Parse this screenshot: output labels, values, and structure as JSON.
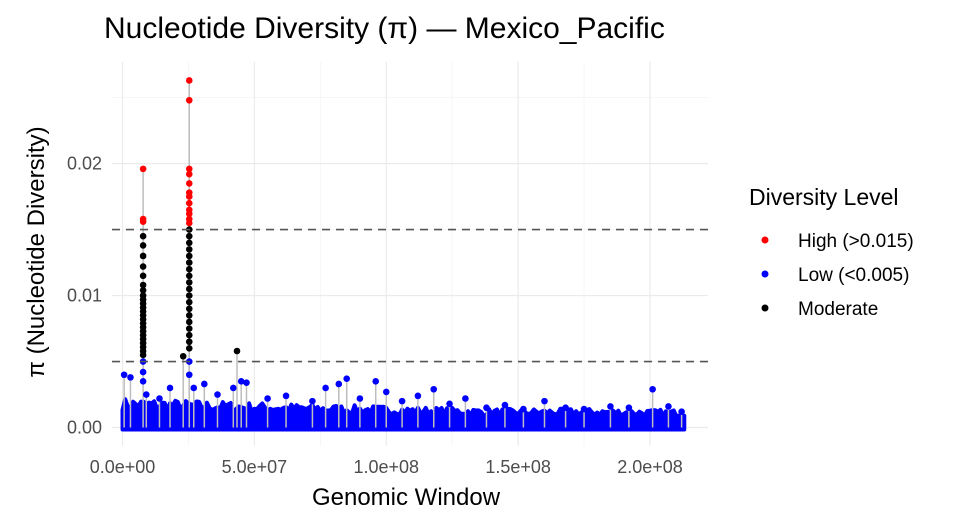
{
  "chart_data": {
    "type": "scatter",
    "title": "Nucleotide Diversity (π) — Mexico_Pacific",
    "xlabel": "Genomic Window",
    "ylabel": "π (Nucleotide Diversity)",
    "xlim": [
      -4000000,
      222000000
    ],
    "ylim": [
      -0.0014,
      0.0277
    ],
    "x_ticks": [
      0,
      50000000,
      100000000,
      150000000,
      200000000
    ],
    "x_tick_labels": [
      "0.0e+00",
      "5.0e+07",
      "1.0e+08",
      "1.5e+08",
      "2.0e+08"
    ],
    "y_ticks": [
      0,
      0.01,
      0.02
    ],
    "y_tick_labels": [
      "0.00",
      "0.01",
      "0.02"
    ],
    "grid": true,
    "reference_lines": [
      0.015,
      0.005
    ],
    "legend": {
      "title": "Diversity Level",
      "position": "right",
      "entries": [
        {
          "label": "High (>0.015)",
          "color": "#ff0000"
        },
        {
          "label": "Low (<0.005)",
          "color": "#0000ff"
        },
        {
          "label": "Moderate",
          "color": "#000000"
        }
      ]
    },
    "series": [
      {
        "name": "High (>0.015)",
        "color": "#ff0000",
        "x": [
          7800000,
          7800000,
          7800000,
          25300000,
          25300000,
          25300000,
          25300000,
          25300000,
          25300000,
          25300000,
          25300000,
          25300000,
          25300000,
          25300000,
          25300000
        ],
        "y": [
          0.0196,
          0.0158,
          0.0156,
          0.0263,
          0.0248,
          0.0196,
          0.0192,
          0.0185,
          0.0178,
          0.0175,
          0.017,
          0.0165,
          0.0162,
          0.0158,
          0.0155
        ]
      },
      {
        "name": "Moderate",
        "color": "#000000",
        "x": [
          7800000,
          7800000,
          7800000,
          7800000,
          7800000,
          7800000,
          7800000,
          7800000,
          7800000,
          7800000,
          7800000,
          7800000,
          7800000,
          7800000,
          7800000,
          7800000,
          7800000,
          7800000,
          7800000,
          7800000,
          7800000,
          7800000,
          7800000,
          25300000,
          25300000,
          25300000,
          25300000,
          25300000,
          25300000,
          25300000,
          25300000,
          25300000,
          25300000,
          25300000,
          25300000,
          25300000,
          25300000,
          25300000,
          25300000,
          25300000,
          25300000,
          25300000,
          23000000,
          43400000
        ],
        "y": [
          0.0145,
          0.0138,
          0.013,
          0.0122,
          0.0115,
          0.0108,
          0.0104,
          0.01,
          0.0097,
          0.0094,
          0.0091,
          0.0088,
          0.0085,
          0.0082,
          0.0079,
          0.0076,
          0.0073,
          0.007,
          0.0067,
          0.0064,
          0.0061,
          0.0058,
          0.0055,
          0.015,
          0.0145,
          0.014,
          0.0135,
          0.013,
          0.0125,
          0.012,
          0.0115,
          0.011,
          0.0105,
          0.01,
          0.0095,
          0.009,
          0.0085,
          0.008,
          0.0075,
          0.007,
          0.0065,
          0.006,
          0.0054,
          0.0058
        ]
      },
      {
        "name": "Low (<0.005)",
        "color": "#0000ff",
        "x": [
          600000,
          3000000,
          7800000,
          7800000,
          7800000,
          9000000,
          14000000,
          18000000,
          25300000,
          25300000,
          27000000,
          31000000,
          36000000,
          42000000,
          45000000,
          47000000,
          55000000,
          62000000,
          72000000,
          77000000,
          82000000,
          85000000,
          90000000,
          96000000,
          100000000,
          106000000,
          112000000,
          118000000,
          124000000,
          130000000,
          138000000,
          145000000,
          152000000,
          160000000,
          168000000,
          175000000,
          185000000,
          192000000,
          201000000,
          207000000,
          212000000
        ],
        "y": [
          0.004,
          0.0038,
          0.005,
          0.0042,
          0.0035,
          0.0025,
          0.0022,
          0.003,
          0.005,
          0.004,
          0.003,
          0.0033,
          0.0025,
          0.003,
          0.0035,
          0.0034,
          0.0022,
          0.0024,
          0.002,
          0.003,
          0.0033,
          0.0037,
          0.0022,
          0.0035,
          0.0027,
          0.002,
          0.0024,
          0.0029,
          0.0018,
          0.0022,
          0.0015,
          0.0017,
          0.0014,
          0.002,
          0.0015,
          0.0014,
          0.0016,
          0.0015,
          0.0029,
          0.0016,
          0.0012
        ]
      }
    ],
    "series_color": "#0000ff",
    "segment_color": "#bdbdbd",
    "baseline_band": {
      "x_start": 0,
      "x_end": 213000000,
      "y_profile": [
        {
          "x": 0,
          "ymax": 0.002
        },
        {
          "x": 30000000,
          "ymax": 0.0018
        },
        {
          "x": 60000000,
          "ymax": 0.0016
        },
        {
          "x": 100000000,
          "ymax": 0.0014
        },
        {
          "x": 140000000,
          "ymax": 0.0012
        },
        {
          "x": 180000000,
          "ymax": 0.0012
        },
        {
          "x": 213000000,
          "ymax": 0.0011
        }
      ]
    }
  }
}
